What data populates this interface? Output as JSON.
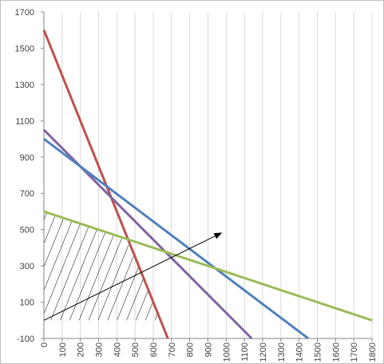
{
  "chart_data": {
    "type": "line",
    "title": "",
    "xlabel": "",
    "ylabel": "",
    "xlim": [
      0,
      1800
    ],
    "ylim": [
      -100,
      1700
    ],
    "x_ticks": [
      "0",
      "100",
      "200",
      "300",
      "400",
      "500",
      "600",
      "700",
      "800",
      "900",
      "1000",
      "1100",
      "1200",
      "1300",
      "1400",
      "1500",
      "1600",
      "1700",
      "1800"
    ],
    "y_ticks": [
      "-100",
      "100",
      "300",
      "500",
      "700",
      "900",
      "1100",
      "1300",
      "1500",
      "1700"
    ],
    "grid": "vertical gridlines only",
    "legend": "none",
    "series": [
      {
        "color": "#c0504d",
        "points": [
          [
            0,
            1600
          ],
          [
            680,
            -100
          ]
        ]
      },
      {
        "color": "#8064a2",
        "points": [
          [
            0,
            1050
          ],
          [
            1140,
            -100
          ]
        ]
      },
      {
        "color": "#4f81bd",
        "points": [
          [
            0,
            1000
          ],
          [
            1450,
            -100
          ]
        ]
      },
      {
        "color": "#9bbb59",
        "points": [
          [
            0,
            600
          ],
          [
            1800,
            0
          ]
        ]
      }
    ],
    "feasible_region": {
      "fill": "diagonal hatch",
      "vertices": [
        [
          0,
          0
        ],
        [
          0,
          600
        ],
        [
          450,
          450
        ],
        [
          640,
          0
        ]
      ]
    },
    "direction_arrow": {
      "from": [
        0,
        0
      ],
      "to": [
        970,
        480
      ]
    }
  }
}
